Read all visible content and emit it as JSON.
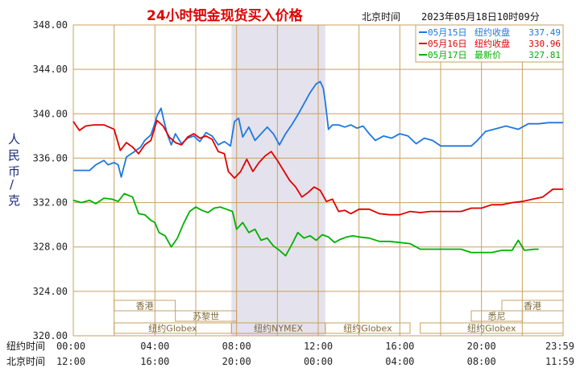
{
  "header": {
    "timezone": "北京时间",
    "timestamp": "2023年05月18日10时09分"
  },
  "chart_data": {
    "type": "line",
    "title": "24小时钯金现货买入价格",
    "ylabel": "人民币/克",
    "ylabel_chars": [
      "人",
      "民",
      "币",
      "/",
      "克"
    ],
    "ylim": [
      320,
      348
    ],
    "xlim": [
      0,
      24
    ],
    "y_ticks": [
      "320.00",
      "324.00",
      "328.00",
      "332.00",
      "336.00",
      "340.00",
      "344.00",
      "348.00"
    ],
    "y_tick_values": [
      320,
      324,
      328,
      332,
      336,
      340,
      344,
      348
    ],
    "x_rows": [
      {
        "label": "纽约时间",
        "ticks": [
          "00:00",
          "04:00",
          "08:00",
          "12:00",
          "16:00",
          "20:00",
          "23:59"
        ]
      },
      {
        "label": "北京时间",
        "ticks": [
          "12:00",
          "16:00",
          "20:00",
          "00:00",
          "04:00",
          "08:00",
          "11:59"
        ]
      }
    ],
    "x_tick_hours": [
      0,
      4,
      8,
      12,
      16,
      20,
      23.99
    ],
    "grid": true,
    "shaded_session_hours": [
      7.75,
      12.35
    ],
    "legend_position": "top-right",
    "markets": [
      {
        "name": "香港",
        "start": 2.0,
        "end": 5.0,
        "row": 0
      },
      {
        "name": "苏黎世",
        "start": 5.0,
        "end": 8.0,
        "row": 1
      },
      {
        "name": "纽约Globex",
        "start": 2.0,
        "end": 7.75,
        "row": 2
      },
      {
        "name": "纽约NYMEX",
        "start": 7.75,
        "end": 12.35,
        "row": 2
      },
      {
        "name": "纽约Globex",
        "start": 12.35,
        "end": 16.5,
        "row": 2
      },
      {
        "name": "悉尼",
        "start": 19.5,
        "end": 22.0,
        "row": 1
      },
      {
        "name": "香港",
        "start": 21.0,
        "end": 24.0,
        "row": 0
      },
      {
        "name": "纽约Globex",
        "start": 17.0,
        "end": 24.0,
        "row": 2
      }
    ],
    "series": [
      {
        "name": "05月15日",
        "label": "纽约收盘",
        "value": "337.49",
        "color": "#1e78e0",
        "points": [
          [
            0,
            334.9
          ],
          [
            0.8,
            334.9
          ],
          [
            1.1,
            335.4
          ],
          [
            1.5,
            335.8
          ],
          [
            1.7,
            335.4
          ],
          [
            2.0,
            335.6
          ],
          [
            2.2,
            335.4
          ],
          [
            2.35,
            334.3
          ],
          [
            2.6,
            336.1
          ],
          [
            3.0,
            336.6
          ],
          [
            3.3,
            337.0
          ],
          [
            3.5,
            337.6
          ],
          [
            3.8,
            338.1
          ],
          [
            3.95,
            338.9
          ],
          [
            4.1,
            339.8
          ],
          [
            4.3,
            340.5
          ],
          [
            4.45,
            339.3
          ],
          [
            4.6,
            338.2
          ],
          [
            4.8,
            337.2
          ],
          [
            5.0,
            338.2
          ],
          [
            5.3,
            337.3
          ],
          [
            5.6,
            337.8
          ],
          [
            5.9,
            338.0
          ],
          [
            6.2,
            337.5
          ],
          [
            6.5,
            338.3
          ],
          [
            6.8,
            338.0
          ],
          [
            7.1,
            337.2
          ],
          [
            7.4,
            337.5
          ],
          [
            7.7,
            337.1
          ],
          [
            7.9,
            339.3
          ],
          [
            8.1,
            339.6
          ],
          [
            8.3,
            337.9
          ],
          [
            8.6,
            338.8
          ],
          [
            8.9,
            337.6
          ],
          [
            9.2,
            338.2
          ],
          [
            9.5,
            338.8
          ],
          [
            9.8,
            338.2
          ],
          [
            10.1,
            337.2
          ],
          [
            10.4,
            338.2
          ],
          [
            10.7,
            339.0
          ],
          [
            11.0,
            339.9
          ],
          [
            11.3,
            340.9
          ],
          [
            11.6,
            341.9
          ],
          [
            11.9,
            342.7
          ],
          [
            12.1,
            342.9
          ],
          [
            12.25,
            342.3
          ],
          [
            12.35,
            341.0
          ],
          [
            12.5,
            338.6
          ],
          [
            12.7,
            339.0
          ],
          [
            13.0,
            339.0
          ],
          [
            13.3,
            338.8
          ],
          [
            13.6,
            339.0
          ],
          [
            13.9,
            338.7
          ],
          [
            14.2,
            338.9
          ],
          [
            14.5,
            338.2
          ],
          [
            14.8,
            337.6
          ],
          [
            15.2,
            338.0
          ],
          [
            15.6,
            337.8
          ],
          [
            16.0,
            338.2
          ],
          [
            16.4,
            338.0
          ],
          [
            16.8,
            337.3
          ],
          [
            17.2,
            337.8
          ],
          [
            17.6,
            337.6
          ],
          [
            18.0,
            337.1
          ],
          [
            18.5,
            337.1
          ],
          [
            19.0,
            337.1
          ],
          [
            19.5,
            337.1
          ],
          [
            19.8,
            337.6
          ],
          [
            20.2,
            338.4
          ],
          [
            20.6,
            338.6
          ],
          [
            21.2,
            338.9
          ],
          [
            21.8,
            338.6
          ],
          [
            22.3,
            339.1
          ],
          [
            22.8,
            339.1
          ],
          [
            23.3,
            339.2
          ],
          [
            24.0,
            339.2
          ]
        ]
      },
      {
        "name": "05月16日",
        "label": "纽约收盘",
        "value": "330.96",
        "color": "#e00000",
        "points": [
          [
            0,
            339.3
          ],
          [
            0.3,
            338.5
          ],
          [
            0.6,
            338.9
          ],
          [
            1.0,
            339.0
          ],
          [
            1.5,
            339.0
          ],
          [
            2.0,
            338.6
          ],
          [
            2.3,
            336.7
          ],
          [
            2.6,
            337.4
          ],
          [
            2.9,
            337.0
          ],
          [
            3.2,
            336.4
          ],
          [
            3.5,
            337.2
          ],
          [
            3.8,
            337.6
          ],
          [
            4.1,
            339.4
          ],
          [
            4.4,
            338.9
          ],
          [
            4.7,
            337.9
          ],
          [
            5.0,
            337.4
          ],
          [
            5.3,
            337.2
          ],
          [
            5.6,
            337.9
          ],
          [
            5.9,
            338.2
          ],
          [
            6.2,
            337.8
          ],
          [
            6.5,
            338.0
          ],
          [
            6.8,
            337.7
          ],
          [
            7.1,
            336.6
          ],
          [
            7.4,
            336.4
          ],
          [
            7.6,
            334.8
          ],
          [
            7.9,
            334.2
          ],
          [
            8.2,
            334.8
          ],
          [
            8.5,
            335.9
          ],
          [
            8.8,
            334.8
          ],
          [
            9.1,
            335.6
          ],
          [
            9.4,
            336.2
          ],
          [
            9.7,
            336.6
          ],
          [
            10.0,
            335.8
          ],
          [
            10.3,
            334.9
          ],
          [
            10.6,
            334.0
          ],
          [
            10.9,
            333.4
          ],
          [
            11.2,
            332.5
          ],
          [
            11.5,
            332.9
          ],
          [
            11.8,
            333.4
          ],
          [
            12.1,
            333.1
          ],
          [
            12.4,
            332.1
          ],
          [
            12.7,
            332.3
          ],
          [
            13.0,
            331.2
          ],
          [
            13.3,
            331.3
          ],
          [
            13.6,
            331.0
          ],
          [
            14.0,
            331.4
          ],
          [
            14.5,
            331.4
          ],
          [
            15.0,
            331.0
          ],
          [
            15.5,
            330.9
          ],
          [
            16.0,
            330.9
          ],
          [
            16.5,
            331.2
          ],
          [
            17.0,
            331.1
          ],
          [
            17.5,
            331.2
          ],
          [
            18.0,
            331.2
          ],
          [
            18.5,
            331.2
          ],
          [
            19.0,
            331.2
          ],
          [
            19.5,
            331.5
          ],
          [
            20.0,
            331.5
          ],
          [
            20.5,
            331.8
          ],
          [
            21.0,
            331.8
          ],
          [
            21.5,
            332.0
          ],
          [
            22.0,
            332.1
          ],
          [
            22.5,
            332.3
          ],
          [
            23.0,
            332.5
          ],
          [
            23.5,
            333.2
          ],
          [
            24.0,
            333.2
          ]
        ]
      },
      {
        "name": "05月17日",
        "label": "最新价",
        "value": "327.81",
        "color": "#00b000",
        "points": [
          [
            0,
            332.2
          ],
          [
            0.4,
            332.0
          ],
          [
            0.8,
            332.2
          ],
          [
            1.1,
            331.9
          ],
          [
            1.5,
            332.4
          ],
          [
            1.9,
            332.3
          ],
          [
            2.2,
            332.1
          ],
          [
            2.5,
            332.8
          ],
          [
            2.9,
            332.5
          ],
          [
            3.2,
            331.0
          ],
          [
            3.5,
            330.9
          ],
          [
            3.8,
            330.4
          ],
          [
            4.0,
            330.2
          ],
          [
            4.2,
            329.3
          ],
          [
            4.5,
            329.0
          ],
          [
            4.8,
            328.0
          ],
          [
            5.1,
            328.8
          ],
          [
            5.4,
            330.1
          ],
          [
            5.7,
            331.2
          ],
          [
            6.0,
            331.6
          ],
          [
            6.3,
            331.3
          ],
          [
            6.6,
            331.1
          ],
          [
            6.9,
            331.5
          ],
          [
            7.2,
            331.6
          ],
          [
            7.5,
            331.4
          ],
          [
            7.8,
            331.2
          ],
          [
            8.0,
            329.6
          ],
          [
            8.3,
            330.2
          ],
          [
            8.6,
            329.3
          ],
          [
            8.9,
            329.6
          ],
          [
            9.2,
            328.6
          ],
          [
            9.5,
            328.8
          ],
          [
            9.8,
            328.1
          ],
          [
            10.1,
            327.7
          ],
          [
            10.4,
            327.2
          ],
          [
            10.7,
            328.2
          ],
          [
            11.0,
            329.3
          ],
          [
            11.3,
            328.8
          ],
          [
            11.6,
            329.0
          ],
          [
            11.9,
            328.6
          ],
          [
            12.2,
            329.1
          ],
          [
            12.5,
            328.9
          ],
          [
            12.8,
            328.4
          ],
          [
            13.1,
            328.7
          ],
          [
            13.4,
            328.9
          ],
          [
            13.7,
            329.0
          ],
          [
            14.0,
            328.9
          ],
          [
            14.5,
            328.8
          ],
          [
            15.0,
            328.5
          ],
          [
            15.5,
            328.5
          ],
          [
            16.0,
            328.4
          ],
          [
            16.5,
            328.3
          ],
          [
            17.0,
            327.8
          ],
          [
            17.5,
            327.8
          ],
          [
            18.0,
            327.8
          ],
          [
            18.5,
            327.8
          ],
          [
            19.0,
            327.8
          ],
          [
            19.5,
            327.5
          ],
          [
            20.0,
            327.5
          ],
          [
            20.5,
            327.5
          ],
          [
            21.0,
            327.7
          ],
          [
            21.5,
            327.7
          ],
          [
            21.8,
            328.6
          ],
          [
            22.1,
            327.7
          ],
          [
            22.6,
            327.8
          ],
          [
            22.8,
            327.8
          ]
        ]
      }
    ]
  }
}
